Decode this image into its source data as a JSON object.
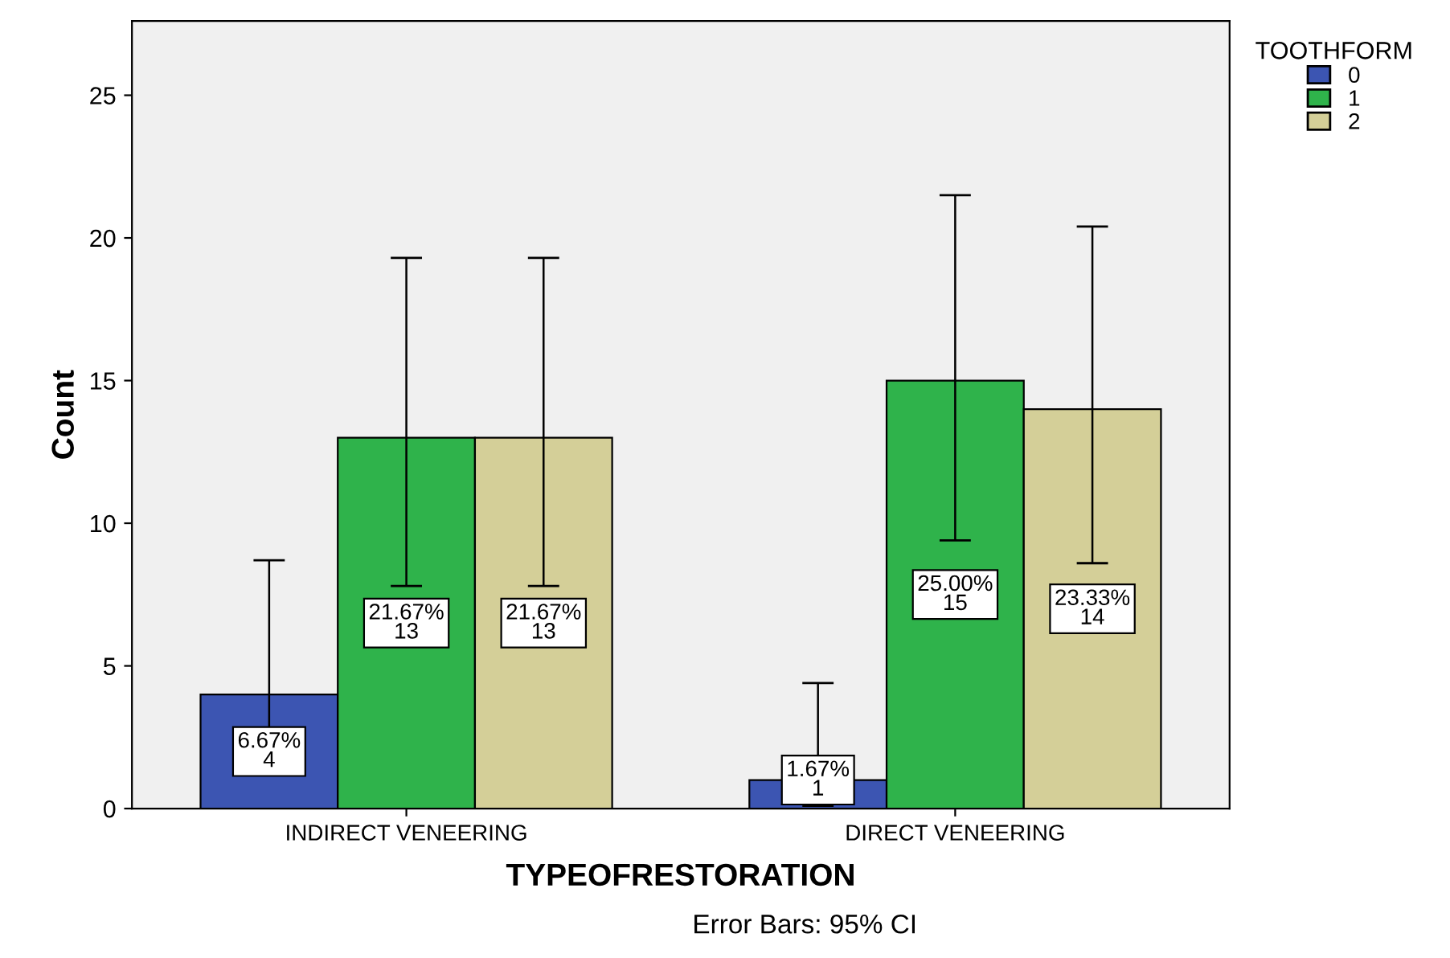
{
  "chart_data": {
    "type": "bar",
    "xlabel": "TYPEOFRESTORATION",
    "ylabel": "Count",
    "legend_title": "TOOTHFORM",
    "categories": [
      "INDIRECT VENEERING",
      "DIRECT VENEERING"
    ],
    "series": [
      {
        "name": "0",
        "color": "#3c55b2",
        "values": [
          4,
          1
        ],
        "errors": [
          [
            1.4,
            8.7
          ],
          [
            0.1,
            4.4
          ]
        ],
        "value_labels": [
          "6.67%\n4",
          "1.67%\n1"
        ]
      },
      {
        "name": "1",
        "color": "#2fb34b",
        "values": [
          13,
          15
        ],
        "errors": [
          [
            7.8,
            19.3
          ],
          [
            9.4,
            21.5
          ]
        ],
        "value_labels": [
          "21.67%\n13",
          "25.00%\n15"
        ]
      },
      {
        "name": "2",
        "color": "#d4cf98",
        "values": [
          13,
          14
        ],
        "errors": [
          [
            7.8,
            19.3
          ],
          [
            8.6,
            20.4
          ]
        ],
        "value_labels": [
          "21.67%\n13",
          "23.33%\n14"
        ]
      }
    ],
    "ylim": [
      0,
      27.6
    ],
    "yticks": [
      0,
      5,
      10,
      15,
      20,
      25
    ],
    "grid": false,
    "legend": "top right",
    "annotations": [
      "Error Bars: 95% CI"
    ]
  }
}
